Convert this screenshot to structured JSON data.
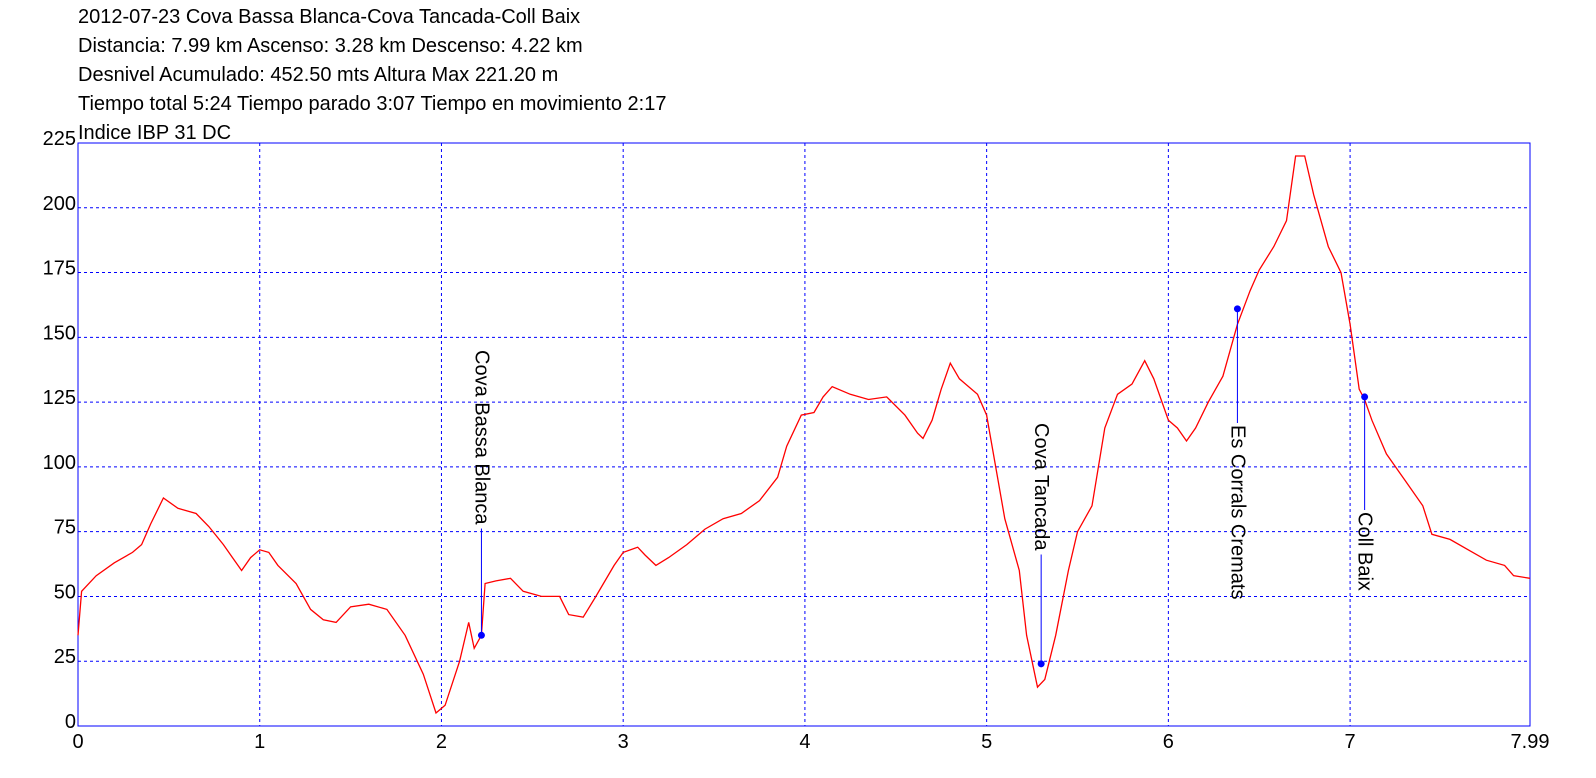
{
  "chart_data": {
    "type": "line",
    "header_lines": [
      "2012-07-23 Cova Bassa Blanca-Cova Tancada-Coll Baix",
      "Distancia: 7.99 km Ascenso: 3.28 km Descenso: 4.22 km",
      "Desnivel Acumulado: 452.50 mts  Altura Max 221.20 m",
      "Tiempo total 5:24 Tiempo parado 3:07 Tiempo en movimiento 2:17",
      "Indice IBP 31 DC"
    ],
    "x": [
      0,
      0.02,
      0.1,
      0.2,
      0.3,
      0.35,
      0.4,
      0.47,
      0.55,
      0.65,
      0.72,
      0.8,
      0.85,
      0.9,
      0.95,
      1.0,
      1.05,
      1.1,
      1.2,
      1.28,
      1.35,
      1.42,
      1.5,
      1.6,
      1.7,
      1.8,
      1.9,
      1.97,
      2.02,
      2.1,
      2.15,
      2.18,
      2.22,
      2.24,
      2.3,
      2.38,
      2.45,
      2.55,
      2.65,
      2.7,
      2.78,
      2.85,
      2.95,
      3.0,
      3.08,
      3.12,
      3.18,
      3.25,
      3.35,
      3.45,
      3.55,
      3.65,
      3.75,
      3.85,
      3.9,
      3.98,
      4.05,
      4.1,
      4.15,
      4.25,
      4.35,
      4.45,
      4.55,
      4.62,
      4.65,
      4.7,
      4.75,
      4.8,
      4.85,
      4.95,
      5.0,
      5.05,
      5.1,
      5.18,
      5.22,
      5.28,
      5.32,
      5.38,
      5.45,
      5.5,
      5.58,
      5.65,
      5.72,
      5.8,
      5.87,
      5.92,
      6.0,
      6.05,
      6.1,
      6.15,
      6.22,
      6.3,
      6.38,
      6.45,
      6.5,
      6.58,
      6.65,
      6.7,
      6.75,
      6.8,
      6.88,
      6.95,
      7.0,
      7.05,
      7.08,
      7.12,
      7.2,
      7.3,
      7.4,
      7.45,
      7.55,
      7.65,
      7.75,
      7.85,
      7.9,
      7.99
    ],
    "values": [
      35,
      52,
      58,
      63,
      67,
      70,
      78,
      88,
      84,
      82,
      77,
      70,
      65,
      60,
      65,
      68,
      67,
      62,
      55,
      45,
      41,
      40,
      46,
      47,
      45,
      35,
      20,
      5,
      8,
      25,
      40,
      30,
      35,
      55,
      56,
      57,
      52,
      50,
      50,
      43,
      42,
      50,
      62,
      67,
      69,
      66,
      62,
      65,
      70,
      76,
      80,
      82,
      87,
      96,
      108,
      120,
      121,
      127,
      131,
      128,
      126,
      127,
      120,
      113,
      111,
      118,
      130,
      140,
      134,
      128,
      120,
      100,
      80,
      60,
      35,
      15,
      18,
      35,
      60,
      75,
      85,
      115,
      128,
      132,
      141,
      134,
      118,
      115,
      110,
      115,
      125,
      135,
      155,
      168,
      176,
      185,
      195,
      220,
      220,
      205,
      185,
      175,
      155,
      130,
      126,
      118,
      105,
      95,
      85,
      74,
      72,
      68,
      64,
      62,
      58,
      57
    ],
    "color": "#ff0000",
    "xlim": [
      0,
      7.99
    ],
    "ylim": [
      0,
      225
    ],
    "xticks": [
      0,
      1,
      2,
      3,
      4,
      5,
      6,
      7,
      7.99
    ],
    "yticks": [
      0,
      25,
      50,
      75,
      100,
      125,
      150,
      175,
      200,
      225
    ],
    "grid": true,
    "waypoints": [
      {
        "name": "Cova Bassa Blanca",
        "x": 2.22,
        "y": 35
      },
      {
        "name": "Cova Tancada",
        "x": 5.3,
        "y": 24
      },
      {
        "name": "Es Corrals Cremats",
        "x": 6.38,
        "y": 161
      },
      {
        "name": "Coll Baix",
        "x": 7.08,
        "y": 127
      }
    ],
    "waypoint_color": "#0000ff"
  }
}
